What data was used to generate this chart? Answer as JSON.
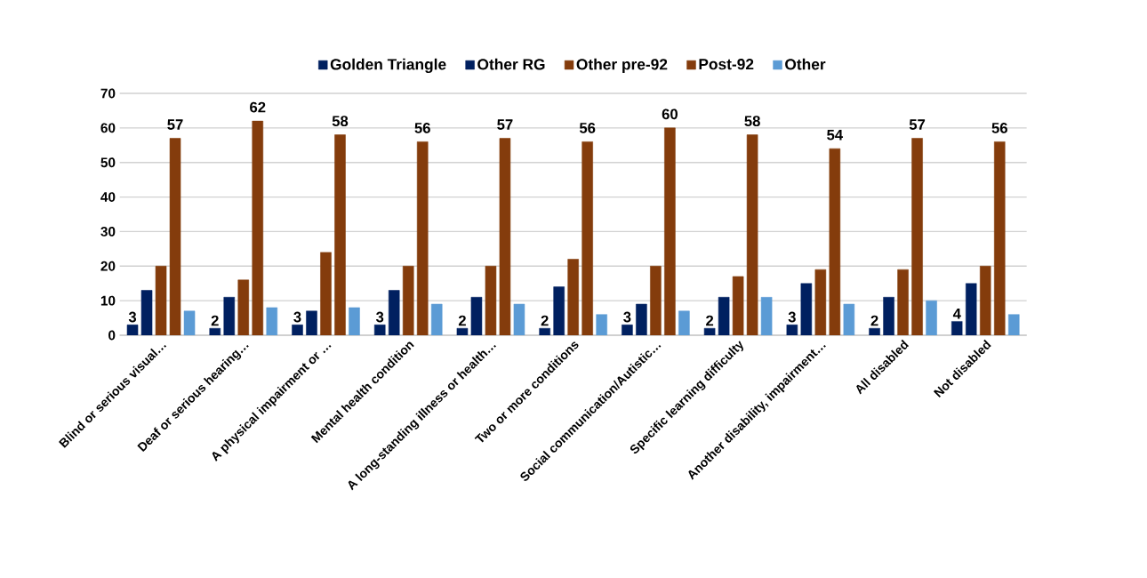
{
  "chart_data": {
    "type": "bar",
    "categories": [
      "Blind or serious visual…",
      "Deaf or serious hearing…",
      "A physical impairment or …",
      "Mental health condition",
      "A long-standing illness or health…",
      "Two or more conditions",
      "Social communication/Autistic…",
      "Specific learning difficulty",
      "Another disability, impairment…",
      "All disabled",
      "Not disabled"
    ],
    "series": [
      {
        "name": "Golden Triangle",
        "color": "#002060",
        "values": [
          3,
          2,
          3,
          3,
          2,
          2,
          3,
          2,
          3,
          2,
          4
        ],
        "value_labels": [
          "3",
          "2",
          "3",
          "3",
          "2",
          "2",
          "3",
          "2",
          "3",
          "2",
          "4"
        ]
      },
      {
        "name": "Other RG",
        "color": "#002060",
        "values": [
          13,
          11,
          7,
          13,
          11,
          14,
          9,
          11,
          15,
          11,
          15
        ]
      },
      {
        "name": "Other pre-92",
        "color": "#843c0c",
        "values": [
          20,
          16,
          24,
          20,
          20,
          22,
          20,
          17,
          19,
          19,
          20
        ]
      },
      {
        "name": "Post-92",
        "color": "#843c0c",
        "values": [
          57,
          62,
          58,
          56,
          57,
          56,
          60,
          58,
          54,
          57,
          56
        ],
        "value_labels": [
          "57",
          "62",
          "58",
          "56",
          "57",
          "56",
          "60",
          "58",
          "54",
          "57",
          "56"
        ]
      },
      {
        "name": "Other",
        "color": "#5b9bd5",
        "values": [
          7,
          8,
          8,
          9,
          9,
          6,
          7,
          11,
          9,
          10,
          6
        ]
      }
    ],
    "ylim": [
      0,
      70
    ],
    "yticks": [
      0,
      10,
      20,
      30,
      40,
      50,
      60,
      70
    ],
    "grid": "y",
    "legend": "top"
  }
}
